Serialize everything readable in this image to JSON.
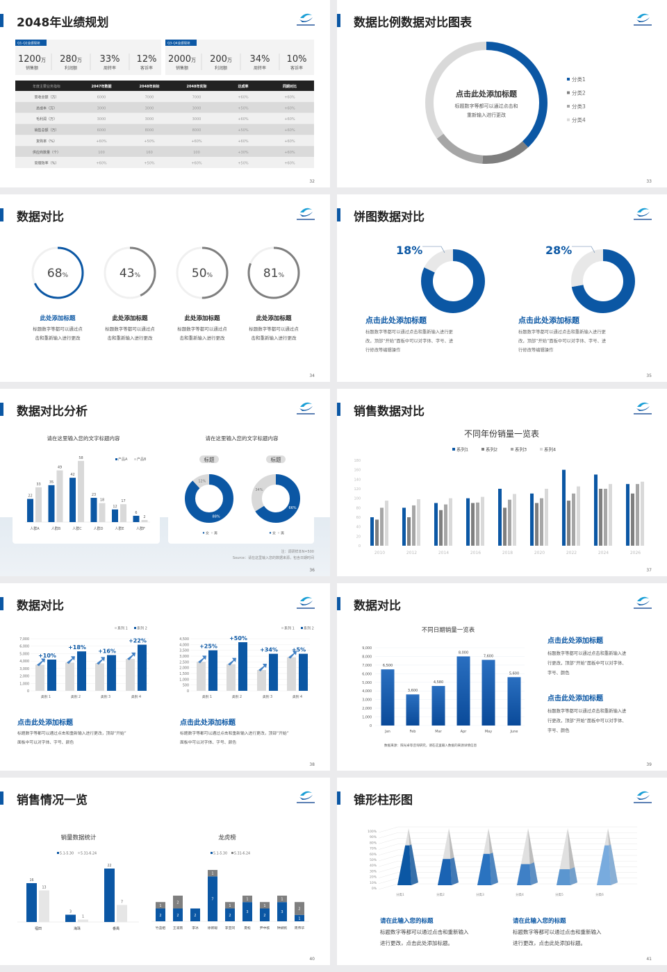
{
  "colors": {
    "blue": "#0b57a4",
    "dark_gray": "#7f7f7f",
    "mid_gray": "#a6a6a6",
    "light_gray": "#d9d9d9",
    "title": "#222222"
  },
  "logo": {
    "icon": "company-logo"
  },
  "slides": [
    {
      "title": "2048年业绩规划",
      "page": "32"
    },
    {
      "title": "数据比例数据对比图表",
      "page": "33"
    },
    {
      "title": "数据对比",
      "page": "34"
    },
    {
      "title": "饼图数据对比",
      "page": "35"
    },
    {
      "title": "数据对比分析",
      "page": "36"
    },
    {
      "title": "销售数据对比",
      "page": "37"
    },
    {
      "title": "数据对比",
      "page": "38"
    },
    {
      "title": "数据对比",
      "page": "39"
    },
    {
      "title": "销售情况一览",
      "page": "40"
    },
    {
      "title": "锥形柱形图",
      "page": "41"
    }
  ],
  "p32": {
    "kpi_groups": [
      {
        "tag": "Q1-Q2业绩现状",
        "items": [
          {
            "value": "1200",
            "unit": "万",
            "label": "销售额"
          },
          {
            "value": "280",
            "unit": "万",
            "label": "利润额"
          },
          {
            "value": "33%",
            "unit": "",
            "label": "周转率"
          },
          {
            "value": "12%",
            "unit": "",
            "label": "客诉率"
          }
        ]
      },
      {
        "tag": "Q3-Q4业绩现状",
        "items": [
          {
            "value": "2000",
            "unit": "万",
            "label": "销售额"
          },
          {
            "value": "200",
            "unit": "万",
            "label": "利润额"
          },
          {
            "value": "34%",
            "unit": "",
            "label": "周转率"
          },
          {
            "value": "10%",
            "unit": "",
            "label": "客诉率"
          }
        ]
      }
    ],
    "table": {
      "headers": [
        "年度主要业务指标",
        "2047年数据",
        "2048年目标",
        "2048年实际",
        "达成率",
        "同期对比"
      ],
      "rows": [
        [
          "营收总额（万）",
          "6000",
          "7000",
          "7000",
          "+60%",
          "+60%"
        ],
        [
          "总成本（万）",
          "3000",
          "3000",
          "3000",
          "+50%",
          "+60%"
        ],
        [
          "毛利润（万）",
          "3000",
          "3000",
          "3000",
          "+60%",
          "+60%"
        ],
        [
          "销售总额（万）",
          "6000",
          "8000",
          "8000",
          "+50%",
          "+60%"
        ],
        [
          "复购率（%）",
          "+60%",
          "+50%",
          "+60%",
          "+60%",
          "+60%"
        ],
        [
          "供应商数量（个）",
          "100",
          "160",
          "100",
          "+30%",
          "+60%"
        ],
        [
          "管理效率（%）",
          "+60%",
          "+50%",
          "+60%",
          "+50%",
          "+60%"
        ]
      ]
    }
  },
  "p33": {
    "heading": "点击此处添加标题",
    "body": [
      "标题数字等都可以通过点击和",
      "重新输入进行更改"
    ]
  },
  "p34": {
    "items": [
      {
        "value": "68",
        "unit": "%",
        "progress": 68,
        "title": "此处添加标题",
        "body": [
          "标题数字等都可以通过点",
          "击和重新输入进行更改"
        ],
        "highlight": true
      },
      {
        "value": "43",
        "unit": "%",
        "progress": 43,
        "title": "此处添加标题",
        "body": [
          "标题数字等都可以通过点",
          "击和重新输入进行更改"
        ],
        "highlight": false
      },
      {
        "value": "50",
        "unit": "%",
        "progress": 50,
        "title": "此处添加标题",
        "body": [
          "标题数字等都可以通过点",
          "击和重新输入进行更改"
        ],
        "highlight": false
      },
      {
        "value": "81",
        "unit": "%",
        "progress": 81,
        "title": "此处添加标题",
        "body": [
          "标题数字等都可以通过点",
          "击和重新输入进行更改"
        ],
        "highlight": false
      }
    ]
  },
  "p35": {
    "blocks": [
      {
        "title": "点击此处添加标题",
        "body": [
          "标题数字等都可以通过点击和重新输入进行更",
          "改，顶部“开始”面板中可以对字体、字号、进",
          "行修改等编辑操作"
        ]
      },
      {
        "title": "点击此处添加标题",
        "body": [
          "标题数字等都可以通过点击和重新输入进行更",
          "改，顶部“开始”面板中可以对字体、字号、进",
          "行修改等编辑操作"
        ]
      }
    ]
  },
  "p36": {
    "bar_card_title": "请在这里输入您的文字标题内容",
    "pie_card_title": "请在这里输入您的文字标题内容",
    "tags": [
      "标题",
      "标题"
    ],
    "note": "注：调研样本N=500",
    "source": "Source：请在这里输入您的数据来源，包含日期时间"
  },
  "p38": {
    "blocks": [
      {
        "title": "点击此处添加标题",
        "body": [
          "标题数字等都可以通过点击和重新输入进行更改，顶部“开始”",
          "面板中可以对字体、字号、颜色"
        ]
      },
      {
        "title": "点击此处添加标题",
        "body": [
          "标题数字等都可以通过点击和重新输入进行更改，顶部“开始”",
          "面板中可以对字体、字号、颜色"
        ]
      }
    ]
  },
  "p39": {
    "blocks": [
      {
        "title": "点击此处添加标题",
        "body": [
          "标题数字等都可以通过点击和重新输入进",
          "行更改，顶部“开始”面板中可以对字体、",
          "字号、颜色"
        ]
      },
      {
        "title": "点击此处添加标题",
        "body": [
          "标题数字等都可以通过点击和重新输入进",
          "行更改，顶部“开始”面板中可以对字体、",
          "字号、颜色"
        ]
      }
    ]
  },
  "p41": {
    "blocks": [
      {
        "title": "请在此输入您的标题",
        "body": [
          "标题数字等都可以通过点击和重新输入",
          "进行更改，点击此处添加标题。"
        ]
      },
      {
        "title": "请在此输入您的标题",
        "body": [
          "标题数字等都可以通过点击和重新输入",
          "进行更改，点击此处添加标题。"
        ]
      }
    ]
  },
  "chart_data": [
    {
      "type": "pie",
      "donut": true,
      "categories": [
        "分类1",
        "分类2",
        "分类3",
        "分类4"
      ],
      "values": [
        38,
        13,
        14,
        35
      ],
      "legend": "right"
    },
    {
      "type": "pie",
      "donut": true,
      "categories": [
        "",
        ""
      ],
      "values": [
        82,
        18
      ],
      "label": "18%"
    },
    {
      "type": "pie",
      "donut": true,
      "categories": [
        "",
        ""
      ],
      "values": [
        72,
        28
      ],
      "label": "28%"
    },
    {
      "type": "bar",
      "categories": [
        "人群A",
        "人群B",
        "人群C",
        "人群D",
        "人群E",
        "人群F"
      ],
      "series": [
        {
          "name": "产品A",
          "values": [
            22,
            35,
            42,
            23,
            12,
            6
          ]
        },
        {
          "name": "产品B",
          "values": [
            33,
            49,
            58,
            18,
            17,
            2
          ]
        }
      ],
      "value_suffix": "%",
      "legend": "top-right"
    },
    {
      "type": "pie",
      "donut": true,
      "categories": [
        "女",
        "男"
      ],
      "values": [
        88,
        12
      ],
      "labels": [
        "88%",
        "12%"
      ],
      "legend": "bottom"
    },
    {
      "type": "pie",
      "donut": true,
      "categories": [
        "女",
        "男"
      ],
      "values": [
        66,
        34
      ],
      "labels": [
        "66%",
        "34%"
      ],
      "legend": "bottom"
    },
    {
      "type": "bar",
      "title": "不同年份销量一览表",
      "categories": [
        "2010",
        "2012",
        "2014",
        "2016",
        "2018",
        "2020",
        "2022",
        "2024",
        "2026"
      ],
      "series": [
        {
          "name": "系列1",
          "values": [
            60,
            80,
            90,
            100,
            120,
            110,
            160,
            150,
            130
          ]
        },
        {
          "name": "系列2",
          "values": [
            55,
            60,
            75,
            90,
            80,
            90,
            95,
            120,
            110
          ]
        },
        {
          "name": "系列3",
          "values": [
            80,
            85,
            87,
            91,
            97,
            100,
            110,
            120,
            130
          ]
        },
        {
          "name": "系列4",
          "values": [
            95,
            98,
            100,
            103,
            109,
            120,
            125,
            130,
            135
          ]
        }
      ],
      "ylim": [
        0,
        180
      ],
      "ystep": 20,
      "legend": "top"
    },
    {
      "type": "bar",
      "categories": [
        "类别 1",
        "类别 2",
        "类别 3",
        "类别 4"
      ],
      "series": [
        {
          "name": "系列 1",
          "values": [
            3500,
            3800,
            3700,
            4300
          ]
        },
        {
          "name": "系列 2",
          "values": [
            4200,
            5300,
            4800,
            6200
          ]
        }
      ],
      "annotations": [
        "+10%",
        "+18%",
        "+16%",
        "+22%"
      ],
      "ylim": [
        0,
        7000
      ],
      "ystep": 1000,
      "legend": "top-right",
      "grid": true
    },
    {
      "type": "bar",
      "categories": [
        "类别 1",
        "类别 2",
        "类别 3",
        "类别 4"
      ],
      "series": [
        {
          "name": "系列 1",
          "values": [
            2500,
            2300,
            1800,
            2900
          ]
        },
        {
          "name": "系列 2",
          "values": [
            3500,
            4200,
            3200,
            3200
          ]
        }
      ],
      "annotations": [
        "+25%",
        "+50%",
        "+34%",
        "+5%"
      ],
      "ylim": [
        0,
        4500
      ],
      "ystep": 500,
      "legend": "top-right",
      "grid": true
    },
    {
      "type": "bar",
      "title": "不同日期销量一览表",
      "categories": [
        "Jan",
        "Feb",
        "Mar",
        "Apr",
        "May",
        "June"
      ],
      "values": [
        6500,
        3600,
        4580,
        8000,
        7600,
        5600
      ],
      "data_labels": [
        "6,500",
        "3,600",
        "4,580",
        "8,000",
        "7,600",
        "5,600"
      ],
      "ylim": [
        0,
        9000
      ],
      "ystep": 1000,
      "grid": true,
      "source": "数据来源：阳光卓等咨询研究，请在这里输入数据的来源详情信息"
    },
    {
      "type": "bar",
      "title": "销量数据统计",
      "categories": [
        "福田",
        "海珠",
        "番禺"
      ],
      "series": [
        {
          "name": "5.1-5.30",
          "values": [
            16,
            3,
            22
          ]
        },
        {
          "name": "5.31-6.24",
          "values": [
            13,
            1,
            7
          ]
        }
      ],
      "legend": "top"
    },
    {
      "type": "bar",
      "stacked": true,
      "title": "龙虎榜",
      "categories": [
        "竹蓝姐",
        "王润南",
        "李冰",
        "徐新聪",
        "李亚同",
        "夏松",
        "尹中核",
        "钟斌帆",
        "周伟华"
      ],
      "series": [
        {
          "name": "5.1-5.30",
          "values": [
            2,
            2,
            2,
            7,
            2,
            3,
            2,
            3,
            1
          ]
        },
        {
          "name": "5.31-6.24",
          "values": [
            1,
            2,
            0,
            1,
            1,
            1,
            1,
            1,
            2
          ]
        }
      ],
      "legend": "top"
    },
    {
      "type": "bar",
      "shape": "cone",
      "categories": [
        "分类1",
        "分类2",
        "分类3",
        "分类4",
        "分类5",
        "分类6"
      ],
      "values": [
        70,
        46,
        55,
        37,
        28,
        70
      ],
      "ylim": [
        0,
        100
      ],
      "ystep": 10,
      "value_suffix": "%"
    }
  ]
}
